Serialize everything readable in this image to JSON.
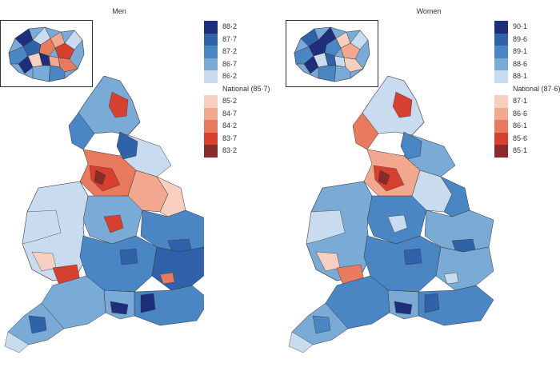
{
  "panels": [
    {
      "title": "Men",
      "legend": [
        {
          "label": "88·2",
          "color": "#1f2e7a"
        },
        {
          "label": "87·7",
          "color": "#2f62a8"
        },
        {
          "label": "87·2",
          "color": "#4a86c4"
        },
        {
          "label": "86·7",
          "color": "#7aaad6"
        },
        {
          "label": "86·2",
          "color": "#c9dcef"
        },
        {
          "label": "National (85·7)",
          "color": "#ffffff"
        },
        {
          "label": "85·2",
          "color": "#f6cfc0"
        },
        {
          "label": "84·7",
          "color": "#f2a88e"
        },
        {
          "label": "84·2",
          "color": "#e87a5e"
        },
        {
          "label": "83·7",
          "color": "#d7402f"
        },
        {
          "label": "83·2",
          "color": "#8b2a2a"
        }
      ]
    },
    {
      "title": "Women",
      "legend": [
        {
          "label": "90·1",
          "color": "#1f2e7a"
        },
        {
          "label": "89·6",
          "color": "#2f62a8"
        },
        {
          "label": "89·1",
          "color": "#4a86c4"
        },
        {
          "label": "88·6",
          "color": "#7aaad6"
        },
        {
          "label": "88·1",
          "color": "#c9dcef"
        },
        {
          "label": "National (87·6)",
          "color": "#ffffff"
        },
        {
          "label": "87·1",
          "color": "#f6cfc0"
        },
        {
          "label": "86·6",
          "color": "#f2a88e"
        },
        {
          "label": "86·1",
          "color": "#e87a5e"
        },
        {
          "label": "85·6",
          "color": "#d7402f"
        },
        {
          "label": "85·1",
          "color": "#8b2a2a"
        }
      ]
    }
  ]
}
